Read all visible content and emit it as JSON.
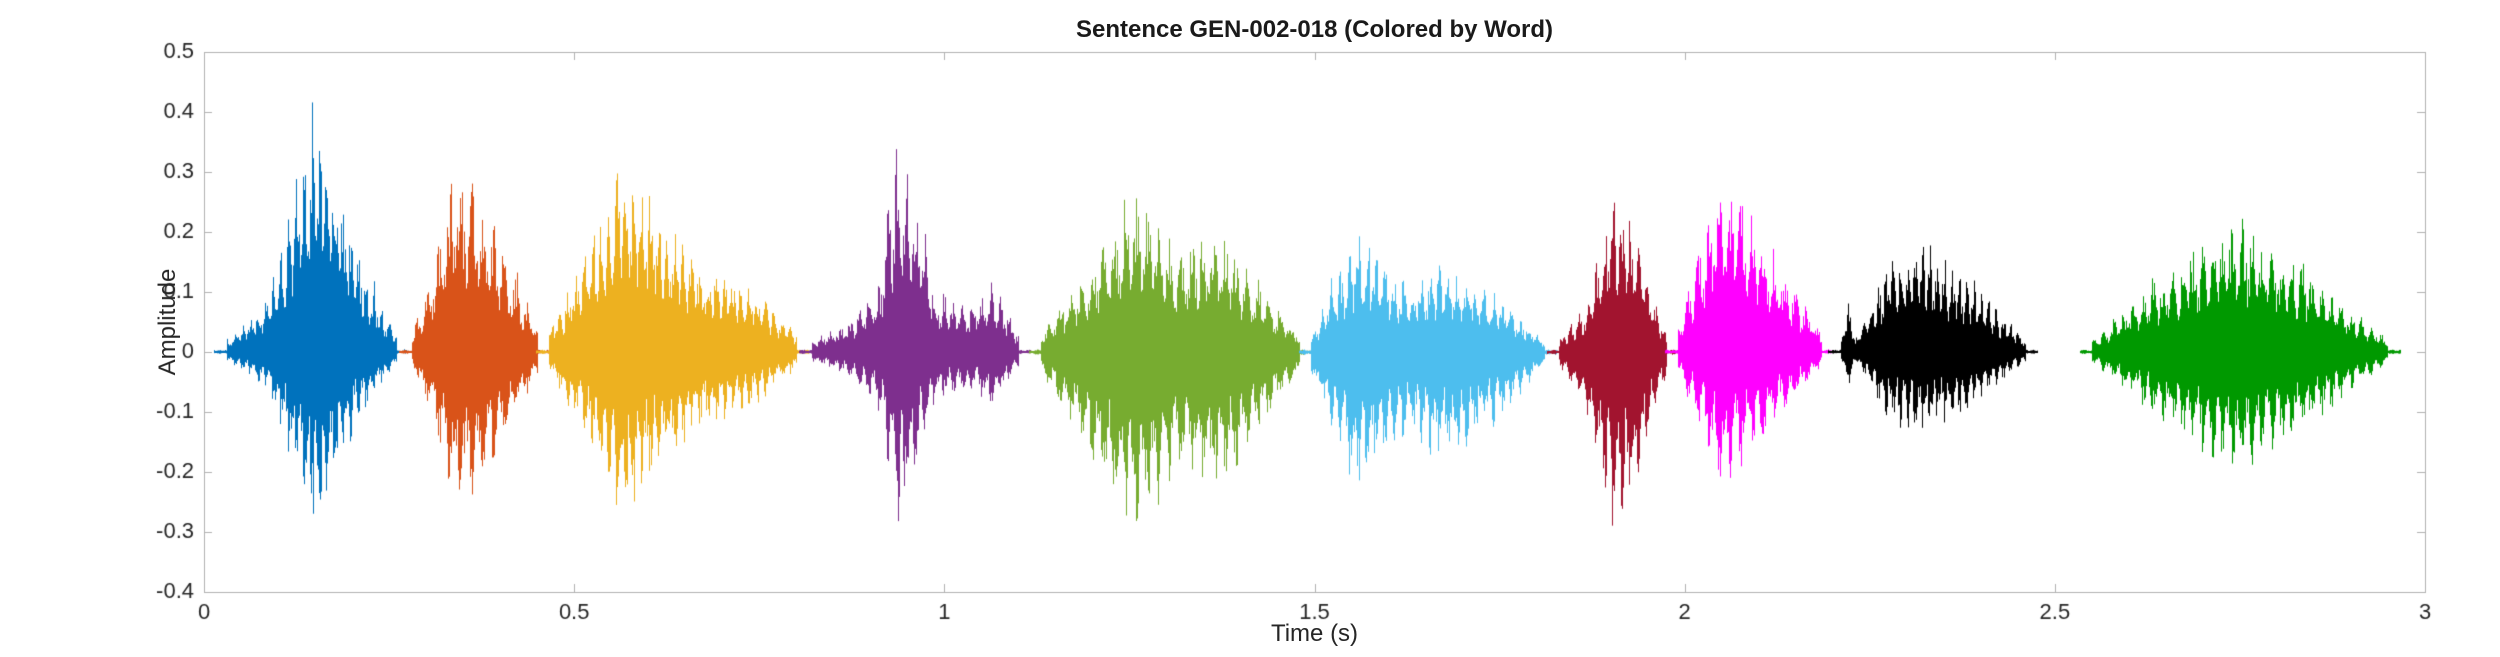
{
  "figure": {
    "title": "Sentence GEN-002-018 (Colored by Word)",
    "sentence_id": "GEN-002-018",
    "xlabel": "Time (s)",
    "ylabel": "Amplitude",
    "background": "#ffffff"
  },
  "chart_data": {
    "type": "line",
    "subtype": "audio-waveform-colored-by-word",
    "title": "Sentence GEN-002-018 (Colored by Word)",
    "xlabel": "Time (s)",
    "ylabel": "Amplitude",
    "xlim": [
      0,
      3
    ],
    "ylim": [
      -0.4,
      0.5
    ],
    "xticks": [
      0,
      0.5,
      1,
      1.5,
      2,
      2.5,
      3
    ],
    "xtick_labels": [
      "0",
      "0.5",
      "1",
      "1.5",
      "2",
      "2.5",
      "3"
    ],
    "yticks": [
      -0.4,
      -0.3,
      -0.2,
      -0.1,
      0,
      0.1,
      0.2,
      0.3,
      0.4,
      0.5
    ],
    "ytick_labels": [
      "-0.4",
      "-0.3",
      "-0.2",
      "-0.1",
      "0",
      "0.1",
      "0.2",
      "0.3",
      "0.4",
      "0.5"
    ],
    "grid": false,
    "legend": "none",
    "axis_color": "#b0b0b0",
    "text_color": "#262626",
    "num_words": 10,
    "series": [
      {
        "name": "word-1",
        "color": "#0072BD",
        "t_start": 0.03,
        "t_end": 0.26,
        "peak": 0.43,
        "trough": -0.3,
        "neg_ratio": 0.7,
        "envelope": [
          [
            0,
            0.02
          ],
          [
            0.12,
            0.05
          ],
          [
            0.25,
            0.1
          ],
          [
            0.42,
            0.3
          ],
          [
            0.52,
            0.43
          ],
          [
            0.62,
            0.33
          ],
          [
            0.75,
            0.18
          ],
          [
            0.88,
            0.09
          ],
          [
            1,
            0.03
          ]
        ]
      },
      {
        "name": "word-2",
        "color": "#D95319",
        "t_start": 0.28,
        "t_end": 0.45,
        "peak": 0.31,
        "trough": -0.27,
        "neg_ratio": 0.85,
        "envelope": [
          [
            0,
            0.03
          ],
          [
            0.15,
            0.12
          ],
          [
            0.35,
            0.31
          ],
          [
            0.55,
            0.26
          ],
          [
            0.75,
            0.16
          ],
          [
            1,
            0.04
          ]
        ]
      },
      {
        "name": "word-3",
        "color": "#EDB120",
        "t_start": 0.465,
        "t_end": 0.8,
        "peak": 0.33,
        "trough": -0.28,
        "neg_ratio": 0.85,
        "envelope": [
          [
            0,
            0.03
          ],
          [
            0.15,
            0.17
          ],
          [
            0.3,
            0.33
          ],
          [
            0.45,
            0.24
          ],
          [
            0.62,
            0.14
          ],
          [
            0.8,
            0.12
          ],
          [
            1,
            0.03
          ]
        ]
      },
      {
        "name": "word-4",
        "color": "#7E2F8E",
        "t_start": 0.82,
        "t_end": 1.1,
        "peak": 0.38,
        "trough": -0.3,
        "neg_ratio": 0.8,
        "envelope": [
          [
            0,
            0.02
          ],
          [
            0.18,
            0.05
          ],
          [
            0.33,
            0.12
          ],
          [
            0.42,
            0.38
          ],
          [
            0.5,
            0.25
          ],
          [
            0.6,
            0.1
          ],
          [
            0.75,
            0.08
          ],
          [
            0.88,
            0.11
          ],
          [
            1,
            0.03
          ]
        ]
      },
      {
        "name": "word-5",
        "color": "#77AC30",
        "t_start": 1.13,
        "t_end": 1.48,
        "peak": 0.27,
        "trough": -0.32,
        "neg_ratio": 1.15,
        "envelope": [
          [
            0,
            0.03
          ],
          [
            0.2,
            0.16
          ],
          [
            0.37,
            0.27
          ],
          [
            0.52,
            0.17
          ],
          [
            0.68,
            0.21
          ],
          [
            0.85,
            0.11
          ],
          [
            1,
            0.03
          ]
        ]
      },
      {
        "name": "word-6",
        "color": "#4DBEEE",
        "t_start": 1.495,
        "t_end": 1.81,
        "peak": 0.2,
        "trough": -0.25,
        "neg_ratio": 1.2,
        "envelope": [
          [
            0,
            0.03
          ],
          [
            0.2,
            0.2
          ],
          [
            0.38,
            0.12
          ],
          [
            0.58,
            0.145
          ],
          [
            0.78,
            0.1
          ],
          [
            1,
            0.02
          ]
        ]
      },
      {
        "name": "word-7",
        "color": "#A2142F",
        "t_start": 1.83,
        "t_end": 1.975,
        "peak": 0.26,
        "trough": -0.31,
        "neg_ratio": 1.15,
        "envelope": [
          [
            0,
            0.02
          ],
          [
            0.25,
            0.08
          ],
          [
            0.5,
            0.26
          ],
          [
            0.7,
            0.21
          ],
          [
            0.9,
            0.08
          ],
          [
            1,
            0.03
          ]
        ]
      },
      {
        "name": "word-8",
        "color": "#FF00FF",
        "t_start": 1.99,
        "t_end": 2.185,
        "peak": 0.3,
        "trough": -0.22,
        "neg_ratio": 0.75,
        "envelope": [
          [
            0,
            0.04
          ],
          [
            0.3,
            0.3
          ],
          [
            0.5,
            0.24
          ],
          [
            0.7,
            0.15
          ],
          [
            0.88,
            0.08
          ],
          [
            1,
            0.03
          ]
        ]
      },
      {
        "name": "word-9",
        "color": "#000000",
        "t_start": 2.21,
        "t_end": 2.46,
        "peak": 0.18,
        "trough": -0.14,
        "neg_ratio": 0.75,
        "envelope": [
          [
            0,
            0.01
          ],
          [
            0.04,
            0.09
          ],
          [
            0.08,
            0.02
          ],
          [
            0.25,
            0.15
          ],
          [
            0.45,
            0.18
          ],
          [
            0.65,
            0.14
          ],
          [
            0.85,
            0.07
          ],
          [
            1,
            0.02
          ]
        ]
      },
      {
        "name": "word-10",
        "color": "#009900",
        "t_start": 2.55,
        "t_end": 2.95,
        "peak": 0.22,
        "trough": -0.2,
        "neg_ratio": 0.9,
        "envelope": [
          [
            0,
            0.02
          ],
          [
            0.22,
            0.12
          ],
          [
            0.48,
            0.22
          ],
          [
            0.68,
            0.16
          ],
          [
            0.88,
            0.07
          ],
          [
            1,
            0.02
          ]
        ]
      }
    ]
  }
}
